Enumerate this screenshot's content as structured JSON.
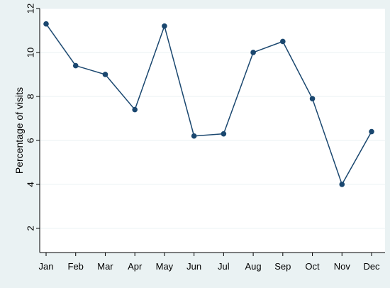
{
  "chart_data": {
    "type": "line",
    "categories": [
      "Jan",
      "Feb",
      "Mar",
      "Apr",
      "May",
      "Jun",
      "Jul",
      "Aug",
      "Sep",
      "Oct",
      "Nov",
      "Dec"
    ],
    "series": [
      {
        "values": [
          11.3,
          9.4,
          9.0,
          7.4,
          11.2,
          6.2,
          6.3,
          10.0,
          10.5,
          7.9,
          4.0,
          6.4
        ],
        "color": "#1a476f",
        "marker": "circle"
      }
    ],
    "title": "",
    "xlabel": "",
    "ylabel": "Percentage of visits",
    "ylim": [
      0.9,
      12
    ],
    "yticks": [
      2,
      4,
      6,
      8,
      10,
      12
    ],
    "grid": true,
    "colors": {
      "background": "#eaf2f3",
      "plot_background": "#ffffff",
      "gridline": "#eaf2f3",
      "axis": "#000000",
      "series": "#1a476f"
    }
  }
}
